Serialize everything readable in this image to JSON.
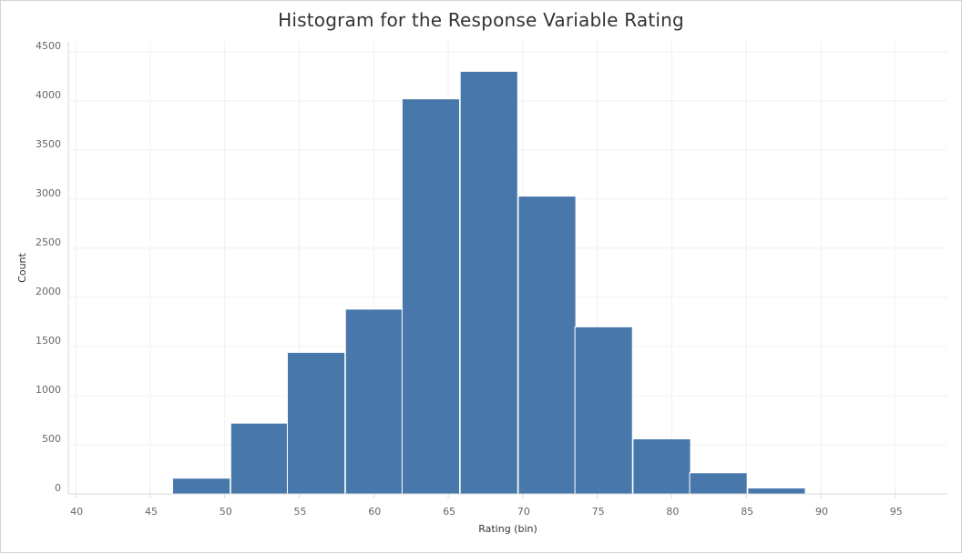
{
  "chart_data": {
    "type": "bar",
    "title": "Histogram for the Response Variable Rating",
    "xlabel": "Rating (bin)",
    "ylabel": "Count",
    "xlim": [
      39.5,
      98.5
    ],
    "ylim": [
      0,
      4600
    ],
    "x_ticks": [
      40,
      45,
      50,
      55,
      60,
      65,
      70,
      75,
      80,
      85,
      90,
      95
    ],
    "y_ticks": [
      0,
      500,
      1000,
      1500,
      2000,
      2500,
      3000,
      3500,
      4000,
      4500
    ],
    "grid": true,
    "bin_width": 3.86,
    "bins": [
      {
        "start": 42.6,
        "value": 2
      },
      {
        "start": 46.5,
        "value": 160
      },
      {
        "start": 50.4,
        "value": 720
      },
      {
        "start": 54.2,
        "value": 1440
      },
      {
        "start": 58.1,
        "value": 1880
      },
      {
        "start": 61.9,
        "value": 4020
      },
      {
        "start": 65.8,
        "value": 4300
      },
      {
        "start": 69.7,
        "value": 3030
      },
      {
        "start": 73.5,
        "value": 1700
      },
      {
        "start": 77.4,
        "value": 560
      },
      {
        "start": 81.2,
        "value": 215
      },
      {
        "start": 85.1,
        "value": 60
      },
      {
        "start": 89.0,
        "value": 8
      }
    ],
    "colors": {
      "bar": "#4878ab",
      "bar_edge": "#ffffff",
      "grid": "#f0f0f0",
      "axis": "#d9d9d9"
    }
  }
}
